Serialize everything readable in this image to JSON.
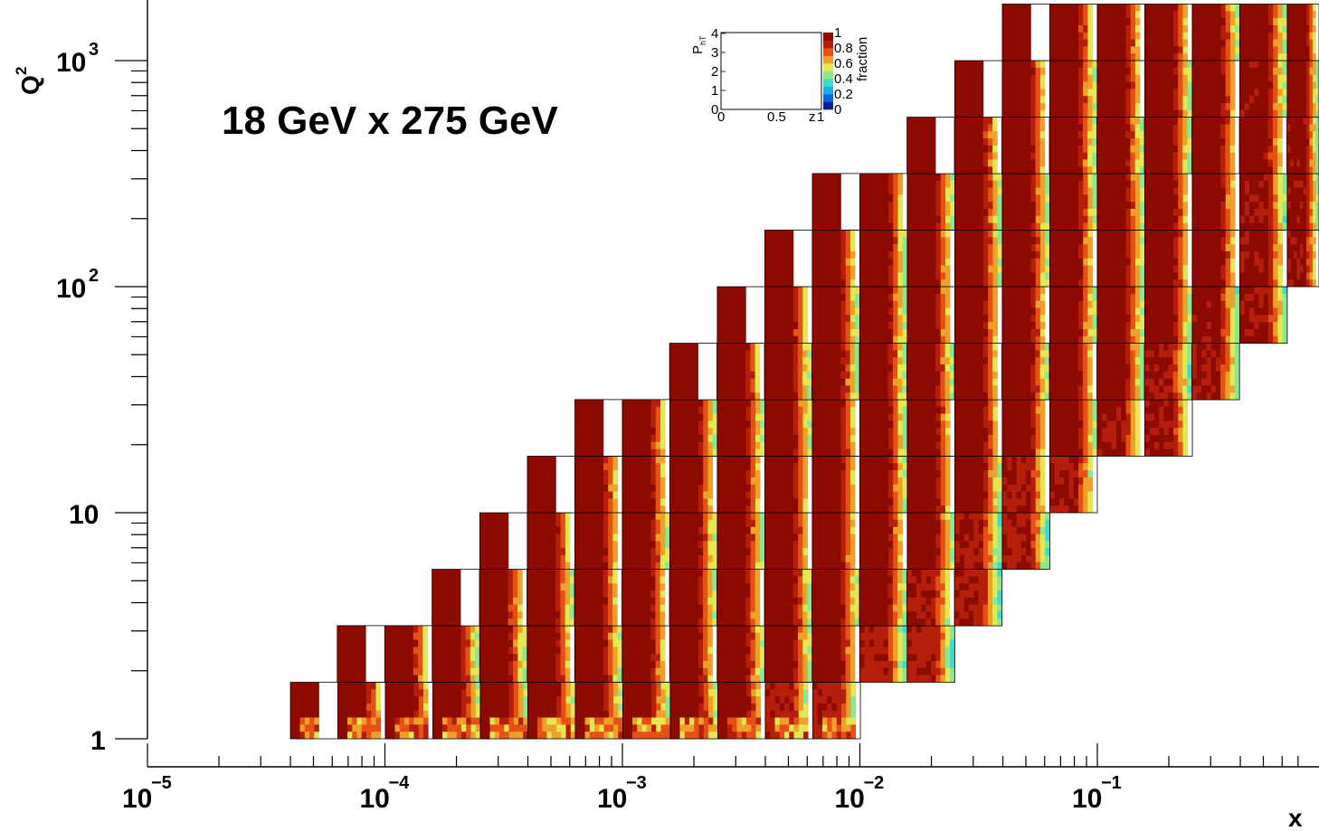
{
  "chart_data": {
    "type": "heatmap",
    "title": "",
    "annotation": "18 GeV x 275 GeV",
    "xlabel": "x",
    "ylabel": "Q",
    "ylabel_sup": "2",
    "xscale": "log",
    "yscale": "log",
    "xlim": [
      1e-05,
      0.75
    ],
    "ylim": [
      0.87,
      1700
    ],
    "x_ticks": [
      {
        "value": 1e-05,
        "base": "10",
        "exp": "−5"
      },
      {
        "value": 0.0001,
        "base": "10",
        "exp": "−4"
      },
      {
        "value": 0.001,
        "base": "10",
        "exp": "−3"
      },
      {
        "value": 0.01,
        "base": "10",
        "exp": "−2"
      },
      {
        "value": 0.1,
        "base": "10",
        "exp": "−1"
      }
    ],
    "y_ticks": [
      {
        "value": 1,
        "base": "1",
        "exp": ""
      },
      {
        "value": 10,
        "base": "10",
        "exp": ""
      },
      {
        "value": 100,
        "base": "10",
        "exp": "2"
      },
      {
        "value": 1000,
        "base": "10",
        "exp": "3"
      }
    ],
    "grid": false,
    "cell_dx_decades": 0.2,
    "cell_dy_decades": 0.25,
    "rows": [
      {
        "q2_low": 1.0,
        "x_low_first": 4e-05,
        "n_cells": 12
      },
      {
        "q2_low": 1.78,
        "x_low_first": 6.3e-05,
        "n_cells": 13
      },
      {
        "q2_low": 3.16,
        "x_low_first": 0.000158,
        "n_cells": 12
      },
      {
        "q2_low": 5.62,
        "x_low_first": 0.000251,
        "n_cells": 12
      },
      {
        "q2_low": 10.0,
        "x_low_first": 0.000398,
        "n_cells": 12
      },
      {
        "q2_low": 17.8,
        "x_low_first": 0.000631,
        "n_cells": 13
      },
      {
        "q2_low": 31.6,
        "x_low_first": 0.00158,
        "n_cells": 12
      },
      {
        "q2_low": 56.2,
        "x_low_first": 0.00251,
        "n_cells": 12
      },
      {
        "q2_low": 100,
        "x_low_first": 0.00398,
        "n_cells": 12
      },
      {
        "q2_low": 178,
        "x_low_first": 0.00631,
        "n_cells": 11
      },
      {
        "q2_low": 316,
        "x_low_first": 0.0158,
        "n_cells": 9
      },
      {
        "q2_low": 562,
        "x_low_first": 0.0251,
        "n_cells": 8
      },
      {
        "q2_low": 1000,
        "x_low_first": 0.0398,
        "n_cells": 7
      }
    ],
    "inset": {
      "xlabel": "z",
      "ylabel": "P",
      "ylabel_sub": "hT",
      "x_ticks": [
        "0",
        "0.5",
        "1"
      ],
      "y_ticks": [
        "0",
        "1",
        "2",
        "3",
        "4"
      ],
      "colorbar_title": "fraction",
      "colorbar_ticks": [
        "0",
        "0.2",
        "0.4",
        "0.6",
        "0.8",
        "1"
      ]
    },
    "colorscale": [
      "#0a1e96",
      "#0a64dc",
      "#14b4e6",
      "#3cdcc8",
      "#8ce88c",
      "#e6e650",
      "#f0a028",
      "#e65014",
      "#b41e0a",
      "#8c0a00"
    ]
  }
}
